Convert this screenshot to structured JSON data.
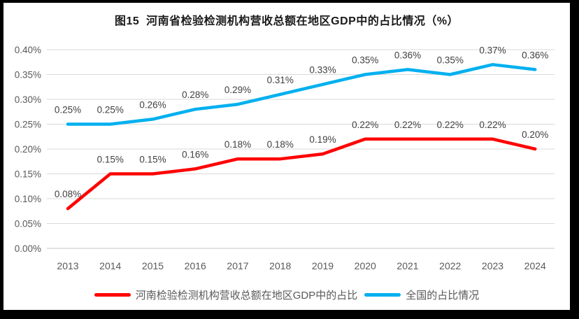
{
  "title": "图15  河南省检验检测机构营收总额在地区GDP中的占比情况（%）",
  "chart_data": {
    "type": "line",
    "categories": [
      "2013",
      "2014",
      "2015",
      "2016",
      "2017",
      "2018",
      "2019",
      "2020",
      "2021",
      "2022",
      "2023",
      "2024"
    ],
    "series": [
      {
        "name": "河南检验检测机构营收总额在地区GDP中的占比",
        "color": "#FF0000",
        "values": [
          0.08,
          0.15,
          0.15,
          0.16,
          0.18,
          0.18,
          0.19,
          0.22,
          0.22,
          0.22,
          0.22,
          0.2
        ],
        "labels": [
          "0.08%",
          "0.15%",
          "0.15%",
          "0.16%",
          "0.18%",
          "0.18%",
          "0.19%",
          "0.22%",
          "0.22%",
          "0.22%",
          "0.22%",
          "0.20%"
        ]
      },
      {
        "name": "全国的占比情况",
        "color": "#00B0F0",
        "values": [
          0.25,
          0.25,
          0.26,
          0.28,
          0.29,
          0.31,
          0.33,
          0.35,
          0.36,
          0.35,
          0.37,
          0.36
        ],
        "labels": [
          "0.25%",
          "0.25%",
          "0.26%",
          "0.28%",
          "0.29%",
          "0.31%",
          "0.33%",
          "0.35%",
          "0.36%",
          "0.35%",
          "0.37%",
          "0.36%"
        ]
      }
    ],
    "xlabel": "",
    "ylabel": "",
    "ylim": [
      0,
      0.4
    ],
    "ytick_labels": [
      "0.00%",
      "0.05%",
      "0.10%",
      "0.15%",
      "0.20%",
      "0.25%",
      "0.30%",
      "0.35%",
      "0.40%"
    ],
    "grid": true,
    "legend_position": "bottom",
    "grid_color": "#D9D9D9",
    "axis_color": "#595959",
    "label_color": "#404040"
  }
}
